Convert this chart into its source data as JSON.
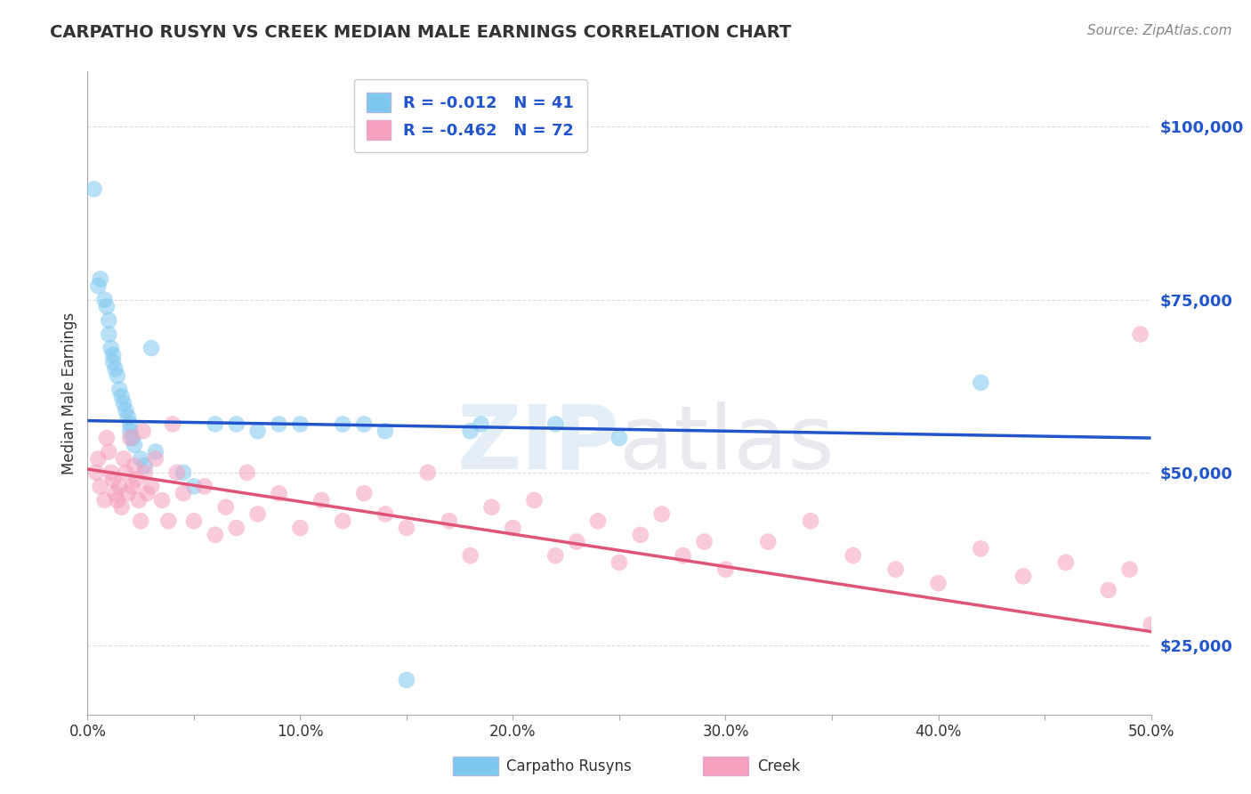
{
  "title": "CARPATHO RUSYN VS CREEK MEDIAN MALE EARNINGS CORRELATION CHART",
  "source": "Source: ZipAtlas.com",
  "ylabel": "Median Male Earnings",
  "yticks": [
    25000,
    50000,
    75000,
    100000
  ],
  "ytick_labels": [
    "$25,000",
    "$50,000",
    "$75,000",
    "$100,000"
  ],
  "xlim": [
    0.0,
    50.0
  ],
  "ylim": [
    15000,
    108000
  ],
  "series1_label": "Carpatho Rusyns",
  "series1_color": "#7ec8f0",
  "series1_line_color": "#2255cc",
  "series1_R": -0.012,
  "series1_N": 41,
  "series2_label": "Creek",
  "series2_color": "#f5a0be",
  "series2_line_color": "#e05575",
  "series2_R": -0.462,
  "series2_N": 72,
  "watermark": "ZIPatlas",
  "background_color": "#ffffff",
  "grid_color": "#dddddd",
  "carpatho_x": [
    0.3,
    0.5,
    0.6,
    0.8,
    0.9,
    1.0,
    1.0,
    1.1,
    1.2,
    1.2,
    1.3,
    1.4,
    1.5,
    1.6,
    1.7,
    1.8,
    1.9,
    2.0,
    2.0,
    2.1,
    2.2,
    2.5,
    2.7,
    3.0,
    3.2,
    4.5,
    5.0,
    6.0,
    7.0,
    8.0,
    9.0,
    10.0,
    12.0,
    13.0,
    14.0,
    18.0,
    18.5,
    22.0,
    25.0,
    42.0,
    15.0
  ],
  "carpatho_y": [
    91000,
    77000,
    78000,
    75000,
    74000,
    72000,
    70000,
    68000,
    67000,
    66000,
    65000,
    64000,
    62000,
    61000,
    60000,
    59000,
    58000,
    57000,
    56000,
    55000,
    54000,
    52000,
    51000,
    68000,
    53000,
    50000,
    48000,
    57000,
    57000,
    56000,
    57000,
    57000,
    57000,
    57000,
    56000,
    56000,
    57000,
    57000,
    55000,
    63000,
    20000
  ],
  "creek_x": [
    0.4,
    0.5,
    0.6,
    0.8,
    0.9,
    1.0,
    1.1,
    1.2,
    1.3,
    1.4,
    1.5,
    1.6,
    1.7,
    1.8,
    1.9,
    2.0,
    2.1,
    2.2,
    2.3,
    2.4,
    2.5,
    2.6,
    2.7,
    2.8,
    3.0,
    3.2,
    3.5,
    3.8,
    4.0,
    4.2,
    4.5,
    5.0,
    5.5,
    6.0,
    6.5,
    7.0,
    7.5,
    8.0,
    9.0,
    10.0,
    11.0,
    12.0,
    13.0,
    14.0,
    15.0,
    16.0,
    17.0,
    18.0,
    19.0,
    20.0,
    21.0,
    22.0,
    23.0,
    24.0,
    25.0,
    26.0,
    27.0,
    28.0,
    29.0,
    30.0,
    32.0,
    34.0,
    36.0,
    38.0,
    40.0,
    42.0,
    44.0,
    46.0,
    48.0,
    49.0,
    49.5,
    50.0
  ],
  "creek_y": [
    50000,
    52000,
    48000,
    46000,
    55000,
    53000,
    50000,
    49000,
    47000,
    46000,
    48000,
    45000,
    52000,
    50000,
    47000,
    55000,
    48000,
    51000,
    49000,
    46000,
    43000,
    56000,
    50000,
    47000,
    48000,
    52000,
    46000,
    43000,
    57000,
    50000,
    47000,
    43000,
    48000,
    41000,
    45000,
    42000,
    50000,
    44000,
    47000,
    42000,
    46000,
    43000,
    47000,
    44000,
    42000,
    50000,
    43000,
    38000,
    45000,
    42000,
    46000,
    38000,
    40000,
    43000,
    37000,
    41000,
    44000,
    38000,
    40000,
    36000,
    40000,
    43000,
    38000,
    36000,
    34000,
    39000,
    35000,
    37000,
    33000,
    36000,
    70000,
    28000
  ]
}
